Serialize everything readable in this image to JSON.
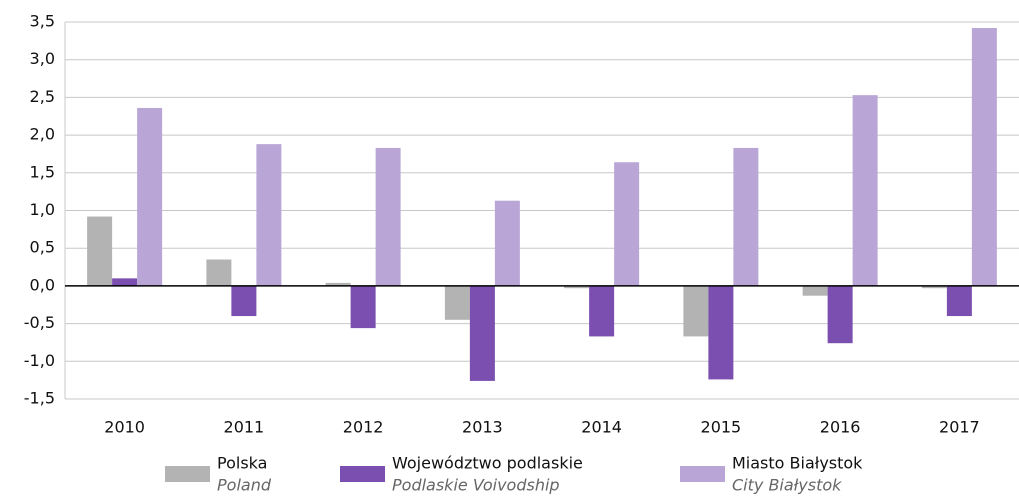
{
  "chart_data": {
    "type": "bar",
    "categories": [
      "2010",
      "2011",
      "2012",
      "2013",
      "2014",
      "2015",
      "2016",
      "2017"
    ],
    "series": [
      {
        "name": "Polska",
        "name_en": "Poland",
        "color": "#b3b3b3",
        "values": [
          0.92,
          0.35,
          0.04,
          -0.45,
          -0.03,
          -0.67,
          -0.13,
          -0.03
        ]
      },
      {
        "name": "Województwo podlaskie",
        "name_en": "Podlaskie Voivodship",
        "color": "#7a4fb0",
        "values": [
          0.1,
          -0.4,
          -0.56,
          -1.26,
          -0.67,
          -1.24,
          -0.76,
          -0.4
        ]
      },
      {
        "name": "Miasto Białystok",
        "name_en": "City Białystok",
        "color": "#b9a6d6",
        "values": [
          2.36,
          1.88,
          1.83,
          1.13,
          1.64,
          1.83,
          2.53,
          3.42
        ]
      }
    ],
    "ylim": [
      -1.5,
      3.5
    ],
    "yticks": [
      {
        "value": -1.5,
        "label": "-1,5"
      },
      {
        "value": -1,
        "label": "-1,0"
      },
      {
        "value": -0.5,
        "label": "-0,5"
      },
      {
        "value": 0,
        "label": "0,0"
      },
      {
        "value": 0.5,
        "label": "0,5"
      },
      {
        "value": 1,
        "label": "1,0"
      },
      {
        "value": 1.5,
        "label": "1,5"
      },
      {
        "value": 2,
        "label": "2,0"
      },
      {
        "value": 2.5,
        "label": "2,5"
      },
      {
        "value": 3,
        "label": "3,0"
      },
      {
        "value": 3.5,
        "label": "3,5"
      }
    ],
    "grid": true
  }
}
